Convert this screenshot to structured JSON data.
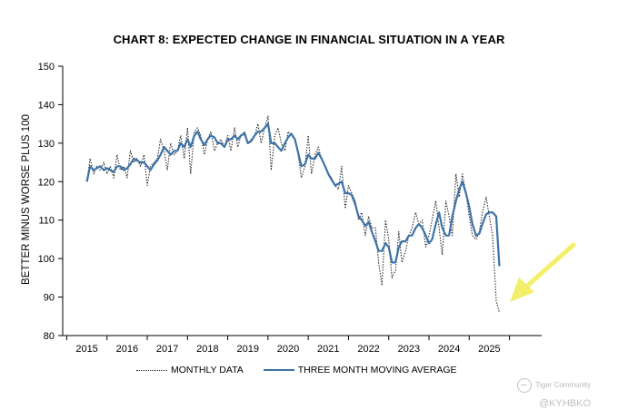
{
  "chart_data": {
    "type": "line",
    "title": "CHART 8: EXPECTED CHANGE IN FINANCIAL SITUATION IN A YEAR",
    "ylabel": "BETTER MINUS WORSE PLUS 100",
    "xlabel": "",
    "ylim": [
      80,
      150
    ],
    "xlim": [
      2014.4,
      2026.3
    ],
    "yticks": [
      80,
      90,
      100,
      110,
      120,
      130,
      140,
      150
    ],
    "xticks": [
      2015,
      2016,
      2017,
      2018,
      2019,
      2020,
      2021,
      2022,
      2023,
      2024,
      2025
    ],
    "xtick_labels": [
      "2015",
      "2016",
      "2017",
      "2018",
      "2019",
      "2020",
      "2021",
      "2022",
      "2023",
      "2024",
      "2025"
    ],
    "grid": false,
    "legend_position": "bottom",
    "series": [
      {
        "name": "MONTHLY DATA",
        "style": "dotted",
        "color": "#222222",
        "x": [
          2015.0,
          2015.08,
          2015.17,
          2015.25,
          2015.33,
          2015.42,
          2015.5,
          2015.58,
          2015.67,
          2015.75,
          2015.83,
          2015.92,
          2016.0,
          2016.08,
          2016.17,
          2016.25,
          2016.33,
          2016.42,
          2016.5,
          2016.58,
          2016.67,
          2016.75,
          2016.83,
          2016.92,
          2017.0,
          2017.08,
          2017.17,
          2017.25,
          2017.33,
          2017.42,
          2017.5,
          2017.58,
          2017.67,
          2017.75,
          2017.83,
          2017.92,
          2018.0,
          2018.08,
          2018.17,
          2018.25,
          2018.33,
          2018.42,
          2018.5,
          2018.58,
          2018.67,
          2018.75,
          2018.83,
          2018.92,
          2019.0,
          2019.08,
          2019.17,
          2019.25,
          2019.33,
          2019.42,
          2019.5,
          2019.58,
          2019.67,
          2019.75,
          2019.83,
          2019.92,
          2020.0,
          2020.08,
          2020.17,
          2020.25,
          2020.33,
          2020.42,
          2020.5,
          2020.58,
          2020.67,
          2020.75,
          2020.83,
          2020.92,
          2021.0,
          2021.08,
          2021.17,
          2021.25,
          2021.33,
          2021.42,
          2021.5,
          2021.58,
          2021.67,
          2021.75,
          2021.83,
          2021.92,
          2022.0,
          2022.08,
          2022.17,
          2022.25,
          2022.33,
          2022.42,
          2022.5,
          2022.58,
          2022.67,
          2022.75,
          2022.83,
          2022.92,
          2023.0,
          2023.08,
          2023.17,
          2023.25,
          2023.33,
          2023.42,
          2023.5,
          2023.58,
          2023.67,
          2023.75,
          2023.83,
          2023.92,
          2024.0,
          2024.08,
          2024.17,
          2024.25,
          2024.33,
          2024.42,
          2024.5,
          2024.58,
          2024.67,
          2024.75,
          2024.83,
          2024.92,
          2025.0,
          2025.08,
          2025.17,
          2025.25
        ],
        "y": [
          120,
          126,
          122,
          124,
          123,
          125,
          122,
          124,
          121,
          127,
          123,
          124,
          121,
          128,
          125,
          126,
          124,
          127,
          119,
          124,
          125,
          126,
          131,
          128,
          123,
          130,
          127,
          128,
          132,
          126,
          134,
          122,
          133,
          134,
          132,
          127,
          131,
          133,
          128,
          130,
          131,
          129,
          132,
          128,
          134,
          129,
          132,
          133,
          130,
          131,
          132,
          135,
          130,
          134,
          137,
          123,
          132,
          134,
          130,
          128,
          133,
          132,
          131,
          127,
          121,
          124,
          132,
          122,
          127,
          129,
          126,
          124,
          122,
          121,
          119,
          118,
          124,
          113,
          119,
          117,
          115,
          110,
          112,
          106,
          111,
          108,
          108,
          99,
          93,
          110,
          105,
          95,
          97,
          107,
          99,
          102,
          106,
          108,
          112,
          109,
          110,
          103,
          106,
          110,
          115,
          108,
          101,
          115,
          111,
          106,
          122,
          116,
          122,
          117,
          111,
          106,
          105,
          107,
          112,
          116,
          111,
          106,
          89,
          86
        ]
      },
      {
        "name": "THREE MONTH MOVING AVERAGE",
        "style": "solid",
        "color": "#3d73a8",
        "x": [
          2015.0,
          2015.08,
          2015.17,
          2015.25,
          2015.33,
          2015.42,
          2015.5,
          2015.58,
          2015.67,
          2015.75,
          2015.83,
          2015.92,
          2016.0,
          2016.08,
          2016.17,
          2016.25,
          2016.33,
          2016.42,
          2016.5,
          2016.58,
          2016.67,
          2016.75,
          2016.83,
          2016.92,
          2017.0,
          2017.08,
          2017.17,
          2017.25,
          2017.33,
          2017.42,
          2017.5,
          2017.58,
          2017.67,
          2017.75,
          2017.83,
          2017.92,
          2018.0,
          2018.08,
          2018.17,
          2018.25,
          2018.33,
          2018.42,
          2018.5,
          2018.58,
          2018.67,
          2018.75,
          2018.83,
          2018.92,
          2019.0,
          2019.08,
          2019.17,
          2019.25,
          2019.33,
          2019.42,
          2019.5,
          2019.58,
          2019.67,
          2019.75,
          2019.83,
          2019.92,
          2020.0,
          2020.08,
          2020.17,
          2020.25,
          2020.33,
          2020.42,
          2020.5,
          2020.58,
          2020.67,
          2020.75,
          2020.83,
          2020.92,
          2021.0,
          2021.08,
          2021.17,
          2021.25,
          2021.33,
          2021.42,
          2021.5,
          2021.58,
          2021.67,
          2021.75,
          2021.83,
          2021.92,
          2022.0,
          2022.08,
          2022.17,
          2022.25,
          2022.33,
          2022.42,
          2022.5,
          2022.58,
          2022.67,
          2022.75,
          2022.83,
          2022.92,
          2023.0,
          2023.08,
          2023.17,
          2023.25,
          2023.33,
          2023.42,
          2023.5,
          2023.58,
          2023.67,
          2023.75,
          2023.83,
          2023.92,
          2024.0,
          2024.08,
          2024.17,
          2024.25,
          2024.33,
          2024.42,
          2024.5,
          2024.58,
          2024.67,
          2024.75,
          2024.83,
          2024.92,
          2025.0,
          2025.08,
          2025.17,
          2025.25
        ],
        "y": [
          120,
          124,
          123,
          123.5,
          124,
          123,
          123.5,
          123,
          122.5,
          124,
          124,
          123,
          123.5,
          124.5,
          126,
          125.5,
          125,
          125,
          124,
          123,
          124.5,
          125.5,
          127,
          129,
          128,
          127,
          128,
          128,
          130,
          129,
          131,
          129,
          132,
          133,
          131,
          129.5,
          131,
          132,
          131.5,
          130,
          130,
          129,
          131,
          131,
          132,
          131,
          132,
          132.5,
          130,
          130.5,
          132,
          133,
          133,
          134,
          135,
          130,
          130,
          129,
          128,
          130,
          131.5,
          132.5,
          131,
          127.5,
          124,
          124.5,
          127,
          126,
          126,
          127.5,
          126,
          124,
          122,
          120.5,
          119,
          119.5,
          120,
          117,
          117,
          116.5,
          114,
          111,
          110,
          108.5,
          109.5,
          107,
          104.5,
          102,
          102,
          104,
          103,
          99,
          99,
          103,
          104.5,
          104.5,
          106,
          106,
          108,
          109,
          108,
          106,
          104,
          105,
          109,
          112,
          108,
          106,
          106,
          111,
          115,
          118,
          120,
          117,
          113.5,
          109,
          106,
          106.5,
          109,
          111.5,
          112,
          112,
          111,
          98
        ]
      }
    ]
  },
  "watermark": {
    "brand": "Tiger Community",
    "handle": "@KYHBKO"
  }
}
